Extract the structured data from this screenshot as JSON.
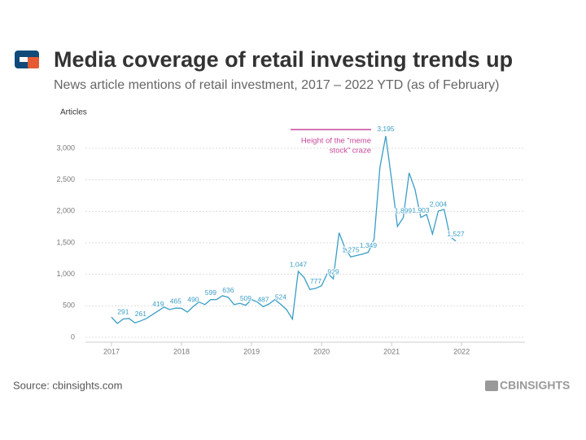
{
  "chart_data": {
    "type": "line",
    "title": "Media coverage of retail investing trends up",
    "subtitle": "News article mentions of retail investment, 2017 – 2022 YTD (as of February)",
    "y_label": "Articles",
    "source": "Source: cbinsights.com",
    "brand": "CBINSIGHTS",
    "annotation": [
      "Height of the “meme",
      "stock” craze"
    ],
    "annotation_color": "#c9489b",
    "color": "#3a9ec6",
    "grid": true,
    "categories": [
      "2017",
      null,
      null,
      null,
      null,
      null,
      null,
      null,
      null,
      null,
      null,
      null,
      "2018",
      null,
      null,
      null,
      null,
      null,
      null,
      null,
      null,
      null,
      null,
      null,
      "2019",
      null,
      null,
      null,
      null,
      null,
      null,
      null,
      null,
      null,
      null,
      null,
      "2020",
      null,
      null,
      null,
      null,
      null,
      null,
      null,
      null,
      null,
      null,
      null,
      "2021",
      null,
      null,
      null,
      null,
      null,
      null,
      null,
      null,
      null,
      null,
      null,
      "2022",
      null,
      null,
      null,
      null,
      null,
      null,
      null,
      null,
      null,
      null,
      null
    ],
    "values": [
      320,
      220,
      291,
      300,
      230,
      261,
      300,
      360,
      419,
      480,
      440,
      465,
      460,
      400,
      490,
      560,
      520,
      599,
      600,
      660,
      636,
      520,
      540,
      509,
      600,
      560,
      487,
      530,
      600,
      524,
      440,
      290,
      1047,
      950,
      760,
      777,
      820,
      1020,
      929,
      1660,
      1420,
      1275,
      1300,
      1320,
      1349,
      1560,
      2700,
      3195,
      2500,
      1760,
      1899,
      2610,
      2350,
      1903,
      1950,
      1640,
      2004,
      2030,
      1600,
      1527,
      null,
      null,
      null,
      null,
      null,
      null,
      null,
      null,
      null,
      null,
      null,
      null
    ],
    "value_labels": [
      null,
      null,
      "291",
      null,
      null,
      "261",
      null,
      null,
      "419",
      null,
      null,
      "465",
      null,
      null,
      "490",
      null,
      null,
      "599",
      null,
      null,
      "636",
      null,
      null,
      "509",
      null,
      null,
      "487",
      null,
      null,
      "524",
      null,
      null,
      "1,047",
      null,
      null,
      "777",
      null,
      null,
      "929",
      null,
      null,
      "1,275",
      null,
      null,
      "1,349",
      null,
      null,
      "3,195",
      null,
      null,
      "1,899",
      null,
      null,
      "1,903",
      null,
      null,
      "2,004",
      null,
      null,
      "1,527",
      null,
      null,
      null,
      null,
      null,
      null,
      null,
      null,
      null,
      null,
      null,
      null
    ],
    "ylim": [
      0,
      3000
    ],
    "yticks": [
      0,
      500,
      {
        "value": 1000,
        "label": "1,000"
      },
      {
        "value": 1500,
        "label": "1,500"
      },
      {
        "value": 2000,
        "label": "2,000"
      },
      {
        "value": 2500,
        "label": "2,500"
      },
      {
        "value": 3000,
        "label": "3,000"
      }
    ]
  }
}
